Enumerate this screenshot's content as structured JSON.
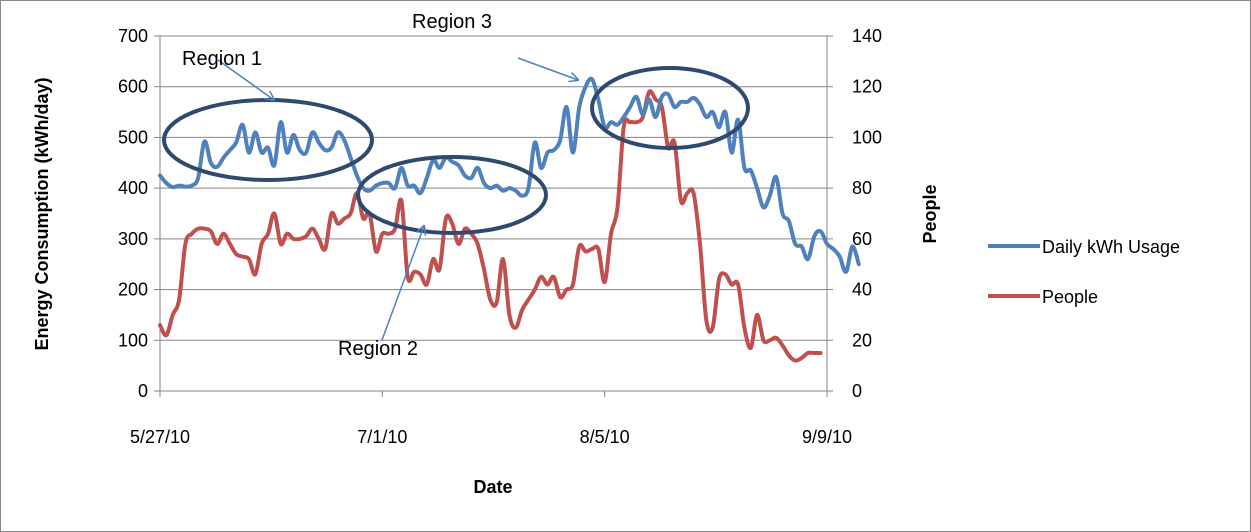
{
  "chart_data": {
    "type": "line",
    "xlabel": "Date",
    "ylabel": "Energy Consumption (kWh/day)",
    "y2label": "People",
    "ylim": [
      0,
      700
    ],
    "y2lim": [
      0,
      140
    ],
    "xlim": [
      "5/27/10",
      "9/9/10"
    ],
    "yticks": [
      0,
      100,
      200,
      300,
      400,
      500,
      600,
      700
    ],
    "y2ticks": [
      0,
      20,
      40,
      60,
      80,
      100,
      120,
      140
    ],
    "xticks": [
      "5/27/10",
      "7/1/10",
      "8/5/10",
      "9/9/10"
    ],
    "grid": true,
    "legend": "right",
    "colors": {
      "kwh": "#4F81BD",
      "people": "#C0504D",
      "region": "#2F4A6E"
    },
    "series": [
      {
        "name": "Daily kWh Usage",
        "axis": "left",
        "points": [
          [
            "5/27/10",
            425
          ],
          [
            "5/28/10",
            410
          ],
          [
            "5/29/10",
            402
          ],
          [
            "5/30/10",
            405
          ],
          [
            "5/31/10",
            403
          ],
          [
            "6/1/10",
            405
          ],
          [
            "6/2/10",
            420
          ],
          [
            "6/3/10",
            492
          ],
          [
            "6/4/10",
            450
          ],
          [
            "6/5/10",
            442
          ],
          [
            "6/6/10",
            460
          ],
          [
            "6/7/10",
            475
          ],
          [
            "6/8/10",
            490
          ],
          [
            "6/9/10",
            525
          ],
          [
            "6/10/10",
            470
          ],
          [
            "6/11/10",
            510
          ],
          [
            "6/12/10",
            470
          ],
          [
            "6/13/10",
            480
          ],
          [
            "6/14/10",
            445
          ],
          [
            "6/15/10",
            530
          ],
          [
            "6/16/10",
            470
          ],
          [
            "6/17/10",
            505
          ],
          [
            "6/18/10",
            475
          ],
          [
            "6/19/10",
            470
          ],
          [
            "6/20/10",
            510
          ],
          [
            "6/21/10",
            490
          ],
          [
            "6/22/10",
            475
          ],
          [
            "6/23/10",
            480
          ],
          [
            "6/24/10",
            510
          ],
          [
            "6/25/10",
            495
          ],
          [
            "6/26/10",
            460
          ],
          [
            "6/27/10",
            425
          ],
          [
            "6/28/10",
            400
          ],
          [
            "6/29/10",
            395
          ],
          [
            "6/30/10",
            405
          ],
          [
            "7/1/10",
            410
          ],
          [
            "7/2/10",
            410
          ],
          [
            "7/3/10",
            400
          ],
          [
            "7/4/10",
            440
          ],
          [
            "7/5/10",
            405
          ],
          [
            "7/6/10",
            405
          ],
          [
            "7/7/10",
            390
          ],
          [
            "7/8/10",
            420
          ],
          [
            "7/9/10",
            455
          ],
          [
            "7/10/10",
            440
          ],
          [
            "7/11/10",
            460
          ],
          [
            "7/12/10",
            452
          ],
          [
            "7/13/10",
            445
          ],
          [
            "7/14/10",
            425
          ],
          [
            "7/15/10",
            420
          ],
          [
            "7/16/10",
            440
          ],
          [
            "7/17/10",
            410
          ],
          [
            "7/18/10",
            400
          ],
          [
            "7/19/10",
            405
          ],
          [
            "7/20/10",
            395
          ],
          [
            "7/21/10",
            400
          ],
          [
            "7/22/10",
            395
          ],
          [
            "7/23/10",
            385
          ],
          [
            "7/24/10",
            400
          ],
          [
            "7/25/10",
            490
          ],
          [
            "7/26/10",
            440
          ],
          [
            "7/27/10",
            470
          ],
          [
            "7/28/10",
            475
          ],
          [
            "7/29/10",
            495
          ],
          [
            "7/30/10",
            560
          ],
          [
            "7/31/10",
            470
          ],
          [
            "8/1/10",
            560
          ],
          [
            "8/2/10",
            600
          ],
          [
            "8/3/10",
            615
          ],
          [
            "8/4/10",
            575
          ],
          [
            "8/5/10",
            520
          ],
          [
            "8/6/10",
            530
          ],
          [
            "8/7/10",
            525
          ],
          [
            "8/8/10",
            540
          ],
          [
            "8/9/10",
            560
          ],
          [
            "8/10/10",
            580
          ],
          [
            "8/11/10",
            545
          ],
          [
            "8/12/10",
            575
          ],
          [
            "8/13/10",
            540
          ],
          [
            "8/14/10",
            580
          ],
          [
            "8/15/10",
            585
          ],
          [
            "8/16/10",
            560
          ],
          [
            "8/17/10",
            570
          ],
          [
            "8/18/10",
            570
          ],
          [
            "8/19/10",
            578
          ],
          [
            "8/20/10",
            565
          ],
          [
            "8/21/10",
            540
          ],
          [
            "8/22/10",
            550
          ],
          [
            "8/23/10",
            520
          ],
          [
            "8/24/10",
            550
          ],
          [
            "8/25/10",
            470
          ],
          [
            "8/26/10",
            535
          ],
          [
            "8/27/10",
            440
          ],
          [
            "8/28/10",
            435
          ],
          [
            "8/29/10",
            400
          ],
          [
            "8/30/10",
            362
          ],
          [
            "8/31/10",
            385
          ],
          [
            "9/1/10",
            422
          ],
          [
            "9/2/10",
            350
          ],
          [
            "9/3/10",
            335
          ],
          [
            "9/4/10",
            290
          ],
          [
            "9/5/10",
            285
          ],
          [
            "9/6/10",
            260
          ],
          [
            "9/7/10",
            305
          ],
          [
            "9/8/10",
            315
          ],
          [
            "9/9/10",
            290
          ],
          [
            "9/10/10",
            280
          ],
          [
            "9/11/10",
            265
          ],
          [
            "9/12/10",
            235
          ],
          [
            "9/13/10",
            285
          ],
          [
            "9/14/10",
            250
          ]
        ]
      },
      {
        "name": "People",
        "axis": "right",
        "points": [
          [
            "5/27/10",
            26
          ],
          [
            "5/28/10",
            22
          ],
          [
            "5/29/10",
            30
          ],
          [
            "5/30/10",
            36
          ],
          [
            "5/31/10",
            58
          ],
          [
            "6/1/10",
            62
          ],
          [
            "6/2/10",
            64
          ],
          [
            "6/3/10",
            64
          ],
          [
            "6/4/10",
            63
          ],
          [
            "6/5/10",
            58
          ],
          [
            "6/6/10",
            62
          ],
          [
            "6/7/10",
            58
          ],
          [
            "6/8/10",
            54
          ],
          [
            "6/9/10",
            53
          ],
          [
            "6/10/10",
            52
          ],
          [
            "6/11/10",
            46
          ],
          [
            "6/12/10",
            58
          ],
          [
            "6/13/10",
            62
          ],
          [
            "6/14/10",
            70
          ],
          [
            "6/15/10",
            58
          ],
          [
            "6/16/10",
            62
          ],
          [
            "6/17/10",
            60
          ],
          [
            "6/18/10",
            60
          ],
          [
            "6/19/10",
            61
          ],
          [
            "6/20/10",
            64
          ],
          [
            "6/21/10",
            60
          ],
          [
            "6/22/10",
            56
          ],
          [
            "6/23/10",
            70
          ],
          [
            "6/24/10",
            66
          ],
          [
            "6/25/10",
            68
          ],
          [
            "6/26/10",
            70
          ],
          [
            "6/27/10",
            78
          ],
          [
            "6/28/10",
            68
          ],
          [
            "6/29/10",
            70
          ],
          [
            "6/30/10",
            55
          ],
          [
            "7/1/10",
            62
          ],
          [
            "7/2/10",
            62
          ],
          [
            "7/3/10",
            64
          ],
          [
            "7/4/10",
            75
          ],
          [
            "7/5/10",
            45
          ],
          [
            "7/6/10",
            47
          ],
          [
            "7/7/10",
            46
          ],
          [
            "7/8/10",
            42
          ],
          [
            "7/9/10",
            52
          ],
          [
            "7/10/10",
            48
          ],
          [
            "7/11/10",
            68
          ],
          [
            "7/12/10",
            66
          ],
          [
            "7/13/10",
            58
          ],
          [
            "7/14/10",
            64
          ],
          [
            "7/15/10",
            62
          ],
          [
            "7/16/10",
            58
          ],
          [
            "7/17/10",
            48
          ],
          [
            "7/18/10",
            36
          ],
          [
            "7/19/10",
            35
          ],
          [
            "7/20/10",
            52
          ],
          [
            "7/21/10",
            30
          ],
          [
            "7/22/10",
            25
          ],
          [
            "7/23/10",
            32
          ],
          [
            "7/24/10",
            36
          ],
          [
            "7/25/10",
            40
          ],
          [
            "7/26/10",
            45
          ],
          [
            "7/27/10",
            42
          ],
          [
            "7/28/10",
            45
          ],
          [
            "7/29/10",
            37
          ],
          [
            "7/30/10",
            40
          ],
          [
            "7/31/10",
            42
          ],
          [
            "8/1/10",
            57
          ],
          [
            "8/2/10",
            55
          ],
          [
            "8/3/10",
            56
          ],
          [
            "8/4/10",
            56
          ],
          [
            "8/5/10",
            43
          ],
          [
            "8/6/10",
            62
          ],
          [
            "8/7/10",
            72
          ],
          [
            "8/8/10",
            104
          ],
          [
            "8/9/10",
            106
          ],
          [
            "8/10/10",
            106
          ],
          [
            "8/11/10",
            108
          ],
          [
            "8/12/10",
            118
          ],
          [
            "8/13/10",
            115
          ],
          [
            "8/14/10",
            112
          ],
          [
            "8/15/10",
            96
          ],
          [
            "8/16/10",
            98
          ],
          [
            "8/17/10",
            75
          ],
          [
            "8/18/10",
            78
          ],
          [
            "8/19/10",
            78
          ],
          [
            "8/20/10",
            58
          ],
          [
            "8/21/10",
            28
          ],
          [
            "8/22/10",
            25
          ],
          [
            "8/23/10",
            44
          ],
          [
            "8/24/10",
            46
          ],
          [
            "8/25/10",
            42
          ],
          [
            "8/26/10",
            42
          ],
          [
            "8/27/10",
            25
          ],
          [
            "8/28/10",
            17
          ],
          [
            "8/29/10",
            30
          ],
          [
            "8/30/10",
            20
          ],
          [
            "8/31/10",
            20
          ],
          [
            "9/1/10",
            21
          ],
          [
            "9/2/10",
            18
          ],
          [
            "9/3/10",
            14
          ],
          [
            "9/4/10",
            12
          ],
          [
            "9/5/10",
            13
          ],
          [
            "9/6/10",
            15
          ],
          [
            "9/7/10",
            15
          ],
          [
            "9/8/10",
            15
          ]
        ]
      }
    ],
    "annotations": [
      {
        "label": "Region 1",
        "anchor": "6/14/10"
      },
      {
        "label": "Region 2",
        "anchor": "7/8/10"
      },
      {
        "label": "Region 3",
        "anchor": "8/2/10"
      }
    ]
  }
}
